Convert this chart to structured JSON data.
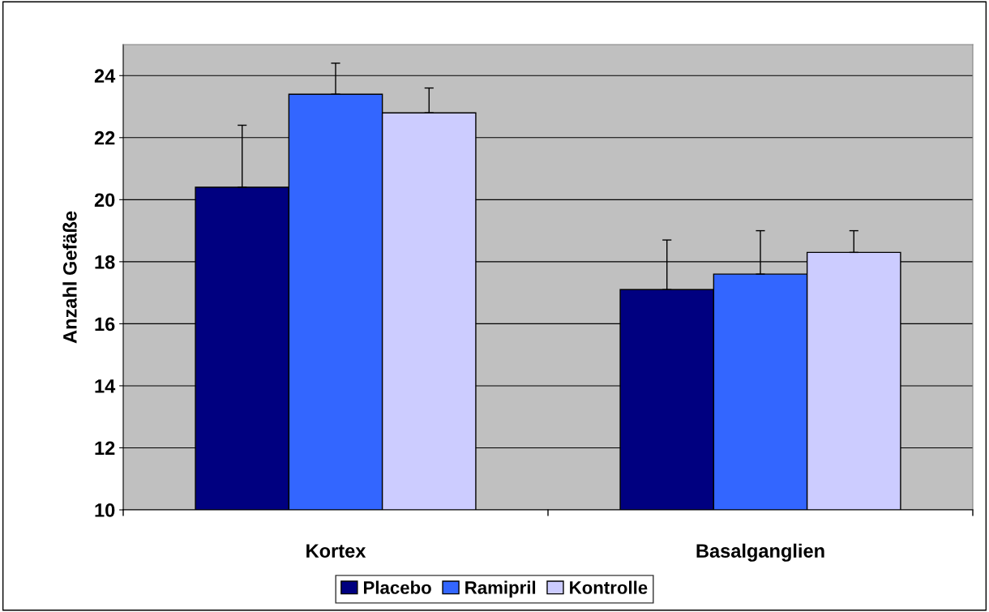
{
  "chart_data": {
    "type": "bar",
    "ylabel": "Anzahl Gefäße",
    "categories": [
      "Kortex",
      "Basalganglien"
    ],
    "series": [
      {
        "name": "Placebo",
        "color": "#000080",
        "values": [
          20.4,
          17.1
        ],
        "errors": [
          [
            20.4,
            22.4
          ],
          [
            17.1,
            18.7
          ]
        ]
      },
      {
        "name": "Ramipril",
        "color": "#3366ff",
        "values": [
          23.4,
          17.6
        ],
        "errors": [
          [
            23.4,
            24.4
          ],
          [
            17.6,
            19.0
          ]
        ]
      },
      {
        "name": "Kontrolle",
        "color": "#ccccff",
        "values": [
          22.8,
          18.3
        ],
        "errors": [
          [
            22.8,
            23.6
          ],
          [
            18.3,
            19.0
          ]
        ]
      }
    ],
    "ylim": [
      10,
      25
    ],
    "yticks": [
      10,
      12,
      14,
      16,
      18,
      20,
      22,
      24
    ],
    "grid": "y",
    "legend": "bottom"
  }
}
